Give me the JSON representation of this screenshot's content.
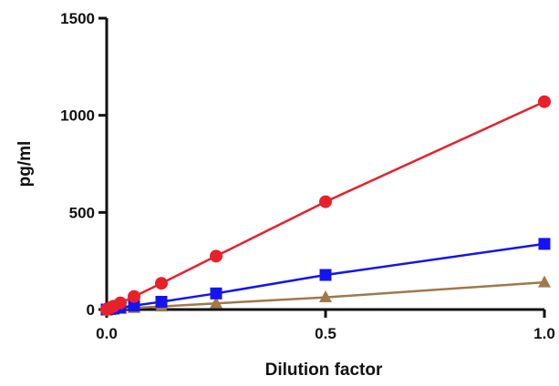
{
  "chart_data": {
    "type": "line",
    "xlabel": "Dilution factor",
    "ylabel": "pg/ml",
    "xlim": [
      0,
      1
    ],
    "ylim": [
      0,
      1500
    ],
    "x_ticks": [
      {
        "value": 0,
        "label": "0.0"
      },
      {
        "value": 0.5,
        "label": "0.5"
      },
      {
        "value": 1,
        "label": "1.0"
      }
    ],
    "y_ticks": [
      {
        "value": 0,
        "label": "0"
      },
      {
        "value": 500,
        "label": "500"
      },
      {
        "value": 1000,
        "label": "1000"
      },
      {
        "value": 1500,
        "label": "1500"
      }
    ],
    "grid": false,
    "legend": "none",
    "series": [
      {
        "color": "#e8202a",
        "marker": "circle",
        "x": [
          0,
          0.0078,
          0.0156,
          0.03125,
          0.0625,
          0.125,
          0.25,
          0.5,
          1
        ],
        "values": [
          0,
          8,
          17,
          34,
          67,
          135,
          275,
          555,
          1070
        ]
      },
      {
        "color": "#1414f0",
        "marker": "square",
        "x": [
          0,
          0.0078,
          0.0156,
          0.03125,
          0.0625,
          0.125,
          0.25,
          0.5,
          1
        ],
        "values": [
          0,
          3,
          5,
          10,
          20,
          40,
          83,
          178,
          338
        ]
      },
      {
        "color": "#a0784a",
        "marker": "triangle",
        "x": [
          0,
          0.0078,
          0.0156,
          0.03125,
          0.0625,
          0.125,
          0.25,
          0.5,
          1
        ],
        "values": [
          0,
          1,
          2,
          4,
          8,
          16,
          32,
          63,
          140
        ]
      }
    ]
  }
}
